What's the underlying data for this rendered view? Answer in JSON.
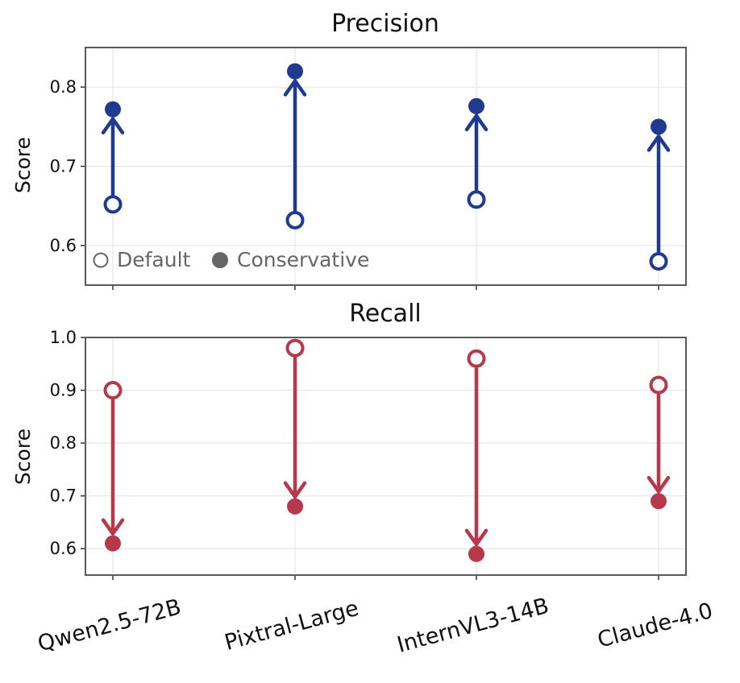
{
  "chart_data": [
    {
      "type": "scatter",
      "title": "Precision",
      "ylabel": "Score",
      "ylim": [
        0.55,
        0.85
      ],
      "yticks": [
        "0.6",
        "0.7",
        "0.8"
      ],
      "yticks_values": [
        0.6,
        0.7,
        0.8
      ],
      "categories": [
        "Qwen2.5-72B",
        "Pixtral-Large",
        "InternVL3-14B",
        "Claude-4.0"
      ],
      "series": [
        {
          "name": "Default",
          "marker": "open",
          "values": [
            0.652,
            0.632,
            0.658,
            0.58
          ]
        },
        {
          "name": "Conservative",
          "marker": "filled",
          "values": [
            0.772,
            0.82,
            0.776,
            0.75
          ]
        }
      ],
      "arrows": "Default → Conservative",
      "color": "#1f3b8f",
      "grid": true,
      "legend_position": "bottom-left"
    },
    {
      "type": "scatter",
      "title": "Recall",
      "ylabel": "Score",
      "ylim": [
        0.55,
        1.0
      ],
      "yticks": [
        "0.6",
        "0.7",
        "0.8",
        "0.9",
        "1.0"
      ],
      "yticks_values": [
        0.6,
        0.7,
        0.8,
        0.9,
        1.0
      ],
      "categories": [
        "Qwen2.5-72B",
        "Pixtral-Large",
        "InternVL3-14B",
        "Claude-4.0"
      ],
      "series": [
        {
          "name": "Default",
          "marker": "open",
          "values": [
            0.9,
            0.98,
            0.96,
            0.91
          ]
        },
        {
          "name": "Conservative",
          "marker": "filled",
          "values": [
            0.61,
            0.68,
            0.59,
            0.69
          ]
        }
      ],
      "arrows": "Default → Conservative",
      "color": "#b5394a",
      "grid": true
    }
  ],
  "legend": {
    "default_label": "Default",
    "conservative_label": "Conservative",
    "marker_color": "#666666"
  }
}
